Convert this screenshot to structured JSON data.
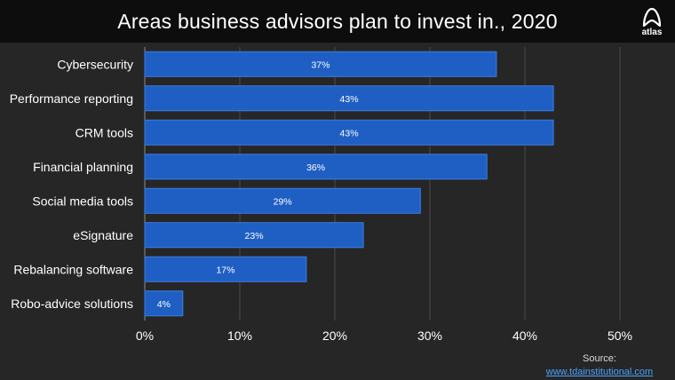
{
  "header": {
    "title": "Areas business advisors plan to invest in., 2020",
    "logo_text": "atlas"
  },
  "source": {
    "label": "Source:",
    "link": "www.tdainstitutional.com"
  },
  "colors": {
    "bar": "#1f5fc4",
    "bar_edge": "#3a7fe0",
    "grid": "#4a4a4a",
    "text": "#ffffff",
    "background": "#262626",
    "title_bar": "#0d0d0d",
    "link": "#4aa3ff"
  },
  "chart_data": {
    "type": "bar",
    "orientation": "horizontal",
    "categories": [
      "Cybersecurity",
      "Performance reporting",
      "CRM tools",
      "Financial planning",
      "Social media tools",
      "eSignature",
      "Rebalancing software",
      "Robo-advice solutions"
    ],
    "values": [
      37,
      43,
      43,
      36,
      29,
      23,
      17,
      4
    ],
    "value_labels": [
      "37%",
      "43%",
      "43%",
      "36%",
      "29%",
      "23%",
      "17%",
      "4%"
    ],
    "x_ticks": [
      "0%",
      "10%",
      "20%",
      "30%",
      "40%",
      "50%"
    ],
    "xlim": [
      0,
      50
    ],
    "title": "Areas business advisors plan to invest in., 2020",
    "xlabel": "",
    "ylabel": "",
    "grid": true,
    "legend": "none"
  }
}
